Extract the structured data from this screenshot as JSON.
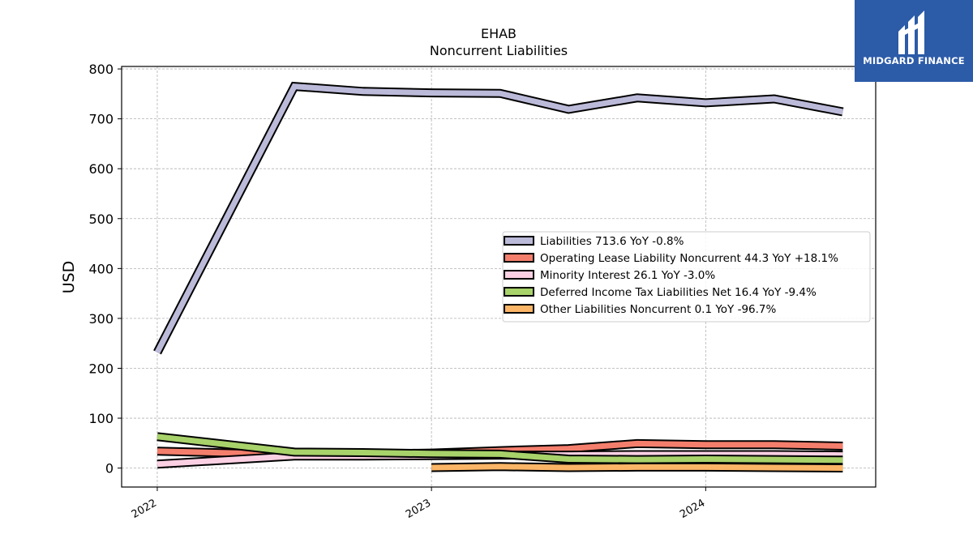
{
  "logo": {
    "text": "MIDGARD FINANCE",
    "background": "#2c5ba8"
  },
  "chart_data": {
    "type": "line",
    "title": "EHAB",
    "subtitle": "Noncurrent  Liabilities",
    "ylabel": "USD",
    "xlabel": "",
    "ylim": [
      -38,
      805
    ],
    "yticks": [
      0,
      100,
      200,
      300,
      400,
      500,
      600,
      700,
      800
    ],
    "xlim": [
      2021.87,
      2024.62
    ],
    "xticks": [
      {
        "value": 2022,
        "label": "2022"
      },
      {
        "value": 2023,
        "label": "2023"
      },
      {
        "value": 2024,
        "label": "2024"
      }
    ],
    "grid": true,
    "legend_position": "center-right",
    "series": [
      {
        "name": "Liabilities",
        "legend": "Liabilities  713.6 YoY -0.8%",
        "color": "#bcbad9",
        "x": [
          2022.0,
          2022.5,
          2022.75,
          2023.0,
          2023.25,
          2023.5,
          2023.75,
          2024.0,
          2024.25,
          2024.5
        ],
        "values": [
          232,
          765,
          755,
          752,
          751,
          719,
          742,
          732,
          740,
          714
        ]
      },
      {
        "name": "Operating Lease Liability Noncurrent",
        "legend": "Operating Lease Liability Noncurrent  44.3 YoY +18.1%",
        "color": "#f47e6c",
        "x": [
          2022.0,
          2022.5,
          2022.75,
          2023.0,
          2023.25,
          2023.5,
          2023.75,
          2024.0,
          2024.25,
          2024.5
        ],
        "values": [
          34,
          27,
          28,
          30,
          35,
          39,
          49,
          47,
          47,
          44
        ]
      },
      {
        "name": "Minority Interest",
        "legend": "Minority Interest  26.1 YoY -3.0%",
        "color": "#fbd0e3",
        "x": [
          2022.0,
          2022.5,
          2022.75,
          2023.0,
          2023.25,
          2023.5,
          2023.75,
          2024.0,
          2024.25,
          2024.5
        ],
        "values": [
          8,
          24,
          24,
          25,
          26,
          26,
          27,
          27,
          27,
          26
        ]
      },
      {
        "name": "Deferred Income Tax Liabilities Net",
        "legend": "Deferred Income Tax Liabilities Net  16.4 YoY -9.4%",
        "color": "#a8d26a",
        "x": [
          2022.0,
          2022.5,
          2022.75,
          2023.0,
          2023.25,
          2023.5,
          2023.75,
          2024.0,
          2024.25,
          2024.5
        ],
        "values": [
          63,
          32,
          31,
          29,
          28,
          18,
          17,
          18,
          17,
          16
        ]
      },
      {
        "name": "Other Liabilities Noncurrent",
        "legend": "Other Liabilities Noncurrent  0.1 YoY -96.7%",
        "color": "#fbb566",
        "x": [
          2023.0,
          2023.25,
          2023.5,
          2023.75,
          2024.0,
          2024.25,
          2024.5
        ],
        "values": [
          1,
          3,
          1,
          2,
          2,
          1,
          0.1
        ]
      }
    ]
  }
}
